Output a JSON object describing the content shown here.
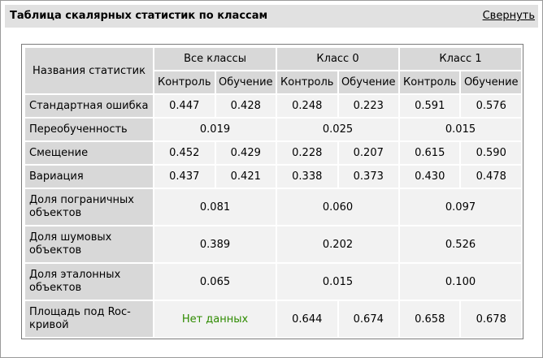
{
  "header": {
    "title": "Таблица скалярных статистик по классам",
    "collapse_label": "Свернуть"
  },
  "table": {
    "name_header": "Названия статистик",
    "groups": [
      "Все классы",
      "Класс 0",
      "Класс 1"
    ],
    "subheaders": [
      "Контроль",
      "Обучение"
    ],
    "rows": [
      {
        "name": "Стандартная ошибка",
        "values": [
          "0.447",
          "0.428",
          "0.248",
          "0.223",
          "0.591",
          "0.576"
        ]
      },
      {
        "name": "Переобученность",
        "values": [
          "0.019",
          "0.025",
          "0.015"
        ]
      },
      {
        "name": "Смещение",
        "values": [
          "0.452",
          "0.429",
          "0.228",
          "0.207",
          "0.615",
          "0.590"
        ]
      },
      {
        "name": "Вариация",
        "values": [
          "0.437",
          "0.421",
          "0.338",
          "0.373",
          "0.430",
          "0.478"
        ]
      },
      {
        "name": "Доля пограничных объектов",
        "values": [
          "0.081",
          "0.060",
          "0.097"
        ]
      },
      {
        "name": "Доля шумовых объектов",
        "values": [
          "0.389",
          "0.202",
          "0.526"
        ]
      },
      {
        "name": "Доля эталонных объектов",
        "values": [
          "0.065",
          "0.015",
          "0.100"
        ]
      },
      {
        "name": "Площадь под Roc-кривой",
        "values": [
          "Нет данных",
          "0.644",
          "0.674",
          "0.658",
          "0.678"
        ]
      }
    ],
    "no_data_color": "#2e8b00"
  }
}
